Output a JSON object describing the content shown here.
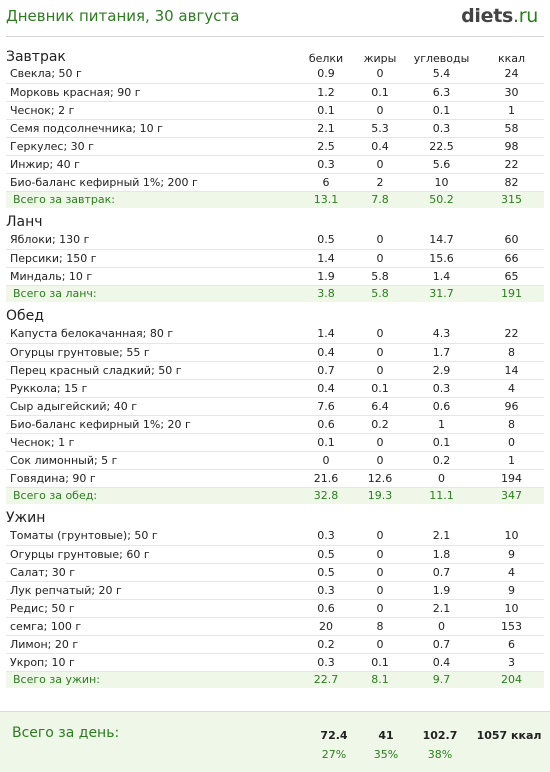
{
  "header": {
    "title": "Дневник питания, 30 августа",
    "logo_main": "diets",
    "logo_suffix": ".ru"
  },
  "columns": {
    "protein": "белки",
    "fat": "жиры",
    "carbs": "углеводы",
    "kcal": "ккал"
  },
  "meals": [
    {
      "title": "Завтрак",
      "items": [
        {
          "name": "Свекла; 50 г",
          "b": "0.9",
          "f": "0",
          "u": "5.4",
          "k": "24"
        },
        {
          "name": "Морковь красная; 90 г",
          "b": "1.2",
          "f": "0.1",
          "u": "6.3",
          "k": "30"
        },
        {
          "name": "Чеснок; 2 г",
          "b": "0.1",
          "f": "0",
          "u": "0.1",
          "k": "1"
        },
        {
          "name": "Семя подсолнечника; 10 г",
          "b": "2.1",
          "f": "5.3",
          "u": "0.3",
          "k": "58"
        },
        {
          "name": "Геркулес; 30 г",
          "b": "2.5",
          "f": "0.4",
          "u": "22.5",
          "k": "98"
        },
        {
          "name": "Инжир; 40 г",
          "b": "0.3",
          "f": "0",
          "u": "5.6",
          "k": "22"
        },
        {
          "name": "Био-баланс кефирный 1%; 200 г",
          "b": "6",
          "f": "2",
          "u": "10",
          "k": "82"
        }
      ],
      "total": {
        "label": "Всего за завтрак:",
        "b": "13.1",
        "f": "7.8",
        "u": "50.2",
        "k": "315"
      }
    },
    {
      "title": "Ланч",
      "items": [
        {
          "name": "Яблоки; 130 г",
          "b": "0.5",
          "f": "0",
          "u": "14.7",
          "k": "60"
        },
        {
          "name": "Персики; 150 г",
          "b": "1.4",
          "f": "0",
          "u": "15.6",
          "k": "66"
        },
        {
          "name": "Миндаль; 10 г",
          "b": "1.9",
          "f": "5.8",
          "u": "1.4",
          "k": "65"
        }
      ],
      "total": {
        "label": "Всего за ланч:",
        "b": "3.8",
        "f": "5.8",
        "u": "31.7",
        "k": "191"
      }
    },
    {
      "title": "Обед",
      "items": [
        {
          "name": "Капуста белокачанная; 80 г",
          "b": "1.4",
          "f": "0",
          "u": "4.3",
          "k": "22"
        },
        {
          "name": "Огурцы грунтовые; 55 г",
          "b": "0.4",
          "f": "0",
          "u": "1.7",
          "k": "8"
        },
        {
          "name": "Перец красный сладкий; 50 г",
          "b": "0.7",
          "f": "0",
          "u": "2.9",
          "k": "14"
        },
        {
          "name": "Руккола; 15 г",
          "b": "0.4",
          "f": "0.1",
          "u": "0.3",
          "k": "4"
        },
        {
          "name": "Сыр адыгейский; 40 г",
          "b": "7.6",
          "f": "6.4",
          "u": "0.6",
          "k": "96"
        },
        {
          "name": "Био-баланс кефирный 1%; 20 г",
          "b": "0.6",
          "f": "0.2",
          "u": "1",
          "k": "8"
        },
        {
          "name": "Чеснок; 1 г",
          "b": "0.1",
          "f": "0",
          "u": "0.1",
          "k": "0"
        },
        {
          "name": "Сок лимонный; 5 г",
          "b": "0",
          "f": "0",
          "u": "0.2",
          "k": "1"
        },
        {
          "name": "Говядина; 90 г",
          "b": "21.6",
          "f": "12.6",
          "u": "0",
          "k": "194"
        }
      ],
      "total": {
        "label": "Всего за обед:",
        "b": "32.8",
        "f": "19.3",
        "u": "11.1",
        "k": "347"
      }
    },
    {
      "title": "Ужин",
      "items": [
        {
          "name": "Томаты (грунтовые); 50 г",
          "b": "0.3",
          "f": "0",
          "u": "2.1",
          "k": "10"
        },
        {
          "name": "Огурцы грунтовые; 60 г",
          "b": "0.5",
          "f": "0",
          "u": "1.8",
          "k": "9"
        },
        {
          "name": "Салат; 30 г",
          "b": "0.5",
          "f": "0",
          "u": "0.7",
          "k": "4"
        },
        {
          "name": "Лук репчатый; 20 г",
          "b": "0.3",
          "f": "0",
          "u": "1.9",
          "k": "9"
        },
        {
          "name": "Редис; 50 г",
          "b": "0.6",
          "f": "0",
          "u": "2.1",
          "k": "10"
        },
        {
          "name": "семга; 100 г",
          "b": "20",
          "f": "8",
          "u": "0",
          "k": "153"
        },
        {
          "name": "Лимон; 20 г",
          "b": "0.2",
          "f": "0",
          "u": "0.7",
          "k": "6"
        },
        {
          "name": "Укроп; 10 г",
          "b": "0.3",
          "f": "0.1",
          "u": "0.4",
          "k": "3"
        }
      ],
      "total": {
        "label": "Всего за ужин:",
        "b": "22.7",
        "f": "8.1",
        "u": "9.7",
        "k": "204"
      }
    }
  ],
  "day_total": {
    "label": "Всего за день:",
    "protein": "72.4",
    "fat": "41",
    "carbs": "102.7",
    "kcal": "1057 ккал",
    "protein_pct": "27%",
    "fat_pct": "35%",
    "carbs_pct": "38%"
  },
  "colors": {
    "accent": "#2d7d20",
    "total_bg": "#eef7e8"
  }
}
